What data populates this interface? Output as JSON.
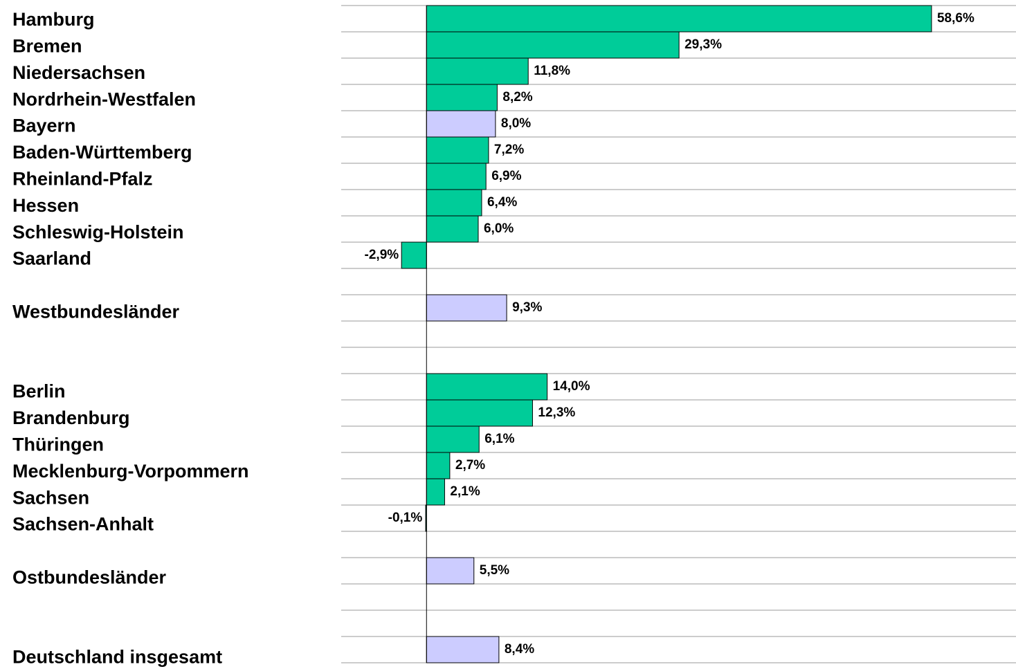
{
  "chart_data": {
    "type": "bar",
    "orientation": "horizontal",
    "categories": [
      "Hamburg",
      "Bremen",
      "Niedersachsen",
      "Nordrhein-Westfalen",
      "Bayern",
      "Baden-Württemberg",
      "Rheinland-Pfalz",
      "Hessen",
      "Schleswig-Holstein",
      "Saarland",
      null,
      "Westbundesländer",
      null,
      null,
      "Berlin",
      "Brandenburg",
      "Thüringen",
      "Mecklenburg-Vorpommern",
      "Sachsen",
      "Sachsen-Anhalt",
      null,
      "Ostbundesländer",
      null,
      null,
      "Deutschland insgesamt"
    ],
    "values": [
      58.6,
      29.3,
      11.8,
      8.2,
      8.0,
      7.2,
      6.9,
      6.4,
      6.0,
      -2.9,
      null,
      9.3,
      null,
      null,
      14.0,
      12.3,
      6.1,
      2.7,
      2.1,
      -0.1,
      null,
      5.5,
      null,
      null,
      8.4
    ],
    "value_labels": [
      "58,6%",
      "29,3%",
      "11,8%",
      "8,2%",
      "8,0%",
      "7,2%",
      "6,9%",
      "6,4%",
      "6,0%",
      "-2,9%",
      null,
      "9,3%",
      null,
      null,
      "14,0%",
      "12,3%",
      "6,1%",
      "2,7%",
      "2,1%",
      "-0,1%",
      null,
      "5,5%",
      null,
      null,
      "8,4%"
    ],
    "colors": [
      "#00cc99",
      "#00cc99",
      "#00cc99",
      "#00cc99",
      "#ccccff",
      "#00cc99",
      "#00cc99",
      "#00cc99",
      "#00cc99",
      "#00cc99",
      null,
      "#ccccff",
      null,
      null,
      "#00cc99",
      "#00cc99",
      "#00cc99",
      "#00cc99",
      "#00cc99",
      "#00cc99",
      null,
      "#ccccff",
      null,
      null,
      "#ccccff"
    ],
    "xlim": [
      -9.9,
      68.4
    ]
  }
}
